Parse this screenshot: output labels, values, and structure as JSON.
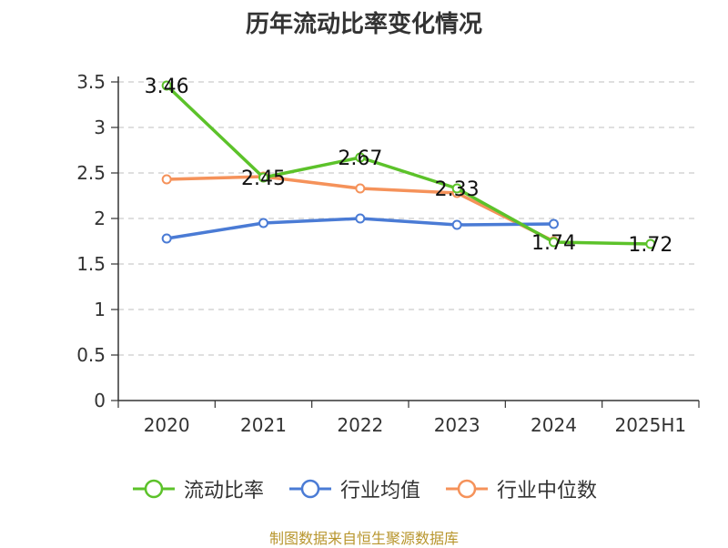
{
  "chart_data": {
    "type": "line",
    "title": "历年流动比率变化情况",
    "categories": [
      "2020",
      "2021",
      "2022",
      "2023",
      "2024",
      "2025H1"
    ],
    "ylim": [
      0,
      3.5
    ],
    "yticks": [
      "0",
      "0.5",
      "1",
      "1.5",
      "2",
      "2.5",
      "3",
      "3.5"
    ],
    "grid": true,
    "legend_position": "bottom",
    "series": [
      {
        "name": "流动比率",
        "color": "#5cc22a",
        "values": [
          3.46,
          2.45,
          2.67,
          2.33,
          1.74,
          1.72
        ],
        "labels": [
          "3.46",
          "2.45",
          "2.67",
          "2.33",
          "1.74",
          "1.72"
        ]
      },
      {
        "name": "行业均值",
        "color": "#4a7bd5",
        "values": [
          1.78,
          1.95,
          2.0,
          1.93,
          1.94,
          null
        ]
      },
      {
        "name": "行业中位数",
        "color": "#f5925a",
        "values": [
          2.43,
          2.46,
          2.33,
          2.28,
          1.75,
          null
        ]
      }
    ],
    "source": "制图数据来自恒生聚源数据库"
  }
}
